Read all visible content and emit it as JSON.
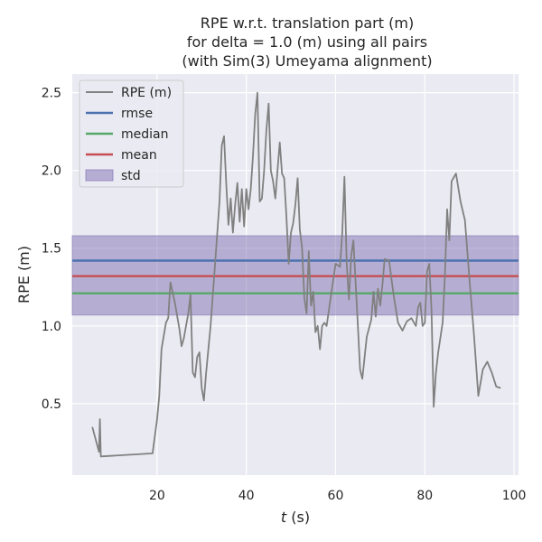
{
  "chart_data": {
    "type": "line",
    "title_lines": [
      "RPE w.r.t. translation part (m)",
      "for delta = 1.0 (m) using all pairs",
      "(with Sim(3) Umeyama alignment)"
    ],
    "xlabel_italic": "t",
    "xlabel_rest": " (s)",
    "ylabel": "RPE (m)",
    "xlim": [
      1,
      101
    ],
    "ylim": [
      0.04,
      2.62
    ],
    "x_ticks": [
      20,
      40,
      60,
      80,
      100
    ],
    "x_tick_labels": [
      "20",
      "40",
      "60",
      "80",
      "100"
    ],
    "y_ticks": [
      0.5,
      1.0,
      1.5,
      2.0,
      2.5
    ],
    "y_tick_labels": [
      "0.5",
      "1.0",
      "1.5",
      "2.0",
      "2.5"
    ],
    "grid": true,
    "legend_position": "top-left",
    "background_color": "#eaeaf2",
    "stats": {
      "rmse": 1.42,
      "median": 1.21,
      "mean": 1.32,
      "std_band": [
        1.07,
        1.58
      ]
    },
    "colors": {
      "rpe": "#808080",
      "rmse": "#4c72b0",
      "median": "#55a868",
      "mean": "#c44e52",
      "std": "#8172b2"
    },
    "legend": [
      {
        "key": "rpe",
        "label": "RPE (m)",
        "kind": "line"
      },
      {
        "key": "rmse",
        "label": "rmse",
        "kind": "line"
      },
      {
        "key": "median",
        "label": "median",
        "kind": "line"
      },
      {
        "key": "mean",
        "label": "mean",
        "kind": "line"
      },
      {
        "key": "std",
        "label": "std",
        "kind": "patch"
      }
    ],
    "series": [
      {
        "key": "rpe",
        "x": [
          5.5,
          7.0,
          7.2,
          7.4,
          19.0,
          20.0,
          20.5,
          21.0,
          22.0,
          22.5,
          23.0,
          24.0,
          25.0,
          25.5,
          26.0,
          27.0,
          27.5,
          28.0,
          28.5,
          29.0,
          29.5,
          30.0,
          30.5,
          31.0,
          32.0,
          33.0,
          34.0,
          34.5,
          35.0,
          35.5,
          36.0,
          36.5,
          37.0,
          37.5,
          38.0,
          38.5,
          39.0,
          39.5,
          40.0,
          40.5,
          41.0,
          41.5,
          42.0,
          42.5,
          43.0,
          43.5,
          44.0,
          44.5,
          45.0,
          45.5,
          46.0,
          46.5,
          47.0,
          47.5,
          48.0,
          48.5,
          49.0,
          49.5,
          50.0,
          50.5,
          51.0,
          51.5,
          52.0,
          52.5,
          53.0,
          53.5,
          54.0,
          54.5,
          55.0,
          55.5,
          56.0,
          56.5,
          57.0,
          57.5,
          58.0,
          59.0,
          60.0,
          61.0,
          61.5,
          62.0,
          62.5,
          63.0,
          63.5,
          64.0,
          65.0,
          65.5,
          66.0,
          67.0,
          68.0,
          68.5,
          69.0,
          69.5,
          70.0,
          70.5,
          71.0,
          72.0,
          73.0,
          74.0,
          75.0,
          75.5,
          76.0,
          77.0,
          78.0,
          78.5,
          79.0,
          79.5,
          80.0,
          80.5,
          81.0,
          81.5,
          82.0,
          82.5,
          83.0,
          84.0,
          84.5,
          85.0,
          85.5,
          86.0,
          87.0,
          88.0,
          89.0,
          90.0,
          91.0,
          92.0,
          93.0,
          94.0,
          95.0,
          96.0,
          97.0
        ],
        "y": [
          0.35,
          0.19,
          0.4,
          0.16,
          0.18,
          0.4,
          0.55,
          0.85,
          1.02,
          1.05,
          1.28,
          1.15,
          0.98,
          0.87,
          0.92,
          1.08,
          1.2,
          0.7,
          0.67,
          0.8,
          0.83,
          0.6,
          0.52,
          0.7,
          1.0,
          1.4,
          1.8,
          2.16,
          2.22,
          1.92,
          1.65,
          1.82,
          1.6,
          1.78,
          1.92,
          1.67,
          1.88,
          1.64,
          1.88,
          1.75,
          1.88,
          2.1,
          2.36,
          2.5,
          1.8,
          1.82,
          2.0,
          2.26,
          2.43,
          2.0,
          1.93,
          1.82,
          2.0,
          2.18,
          1.98,
          1.95,
          1.7,
          1.4,
          1.6,
          1.66,
          1.78,
          1.95,
          1.62,
          1.5,
          1.18,
          1.08,
          1.48,
          1.13,
          1.22,
          0.96,
          1.0,
          0.85,
          1.0,
          1.02,
          1.0,
          1.2,
          1.4,
          1.38,
          1.6,
          1.96,
          1.4,
          1.17,
          1.45,
          1.55,
          1.0,
          0.72,
          0.66,
          0.93,
          1.04,
          1.22,
          1.06,
          1.24,
          1.13,
          1.26,
          1.43,
          1.42,
          1.2,
          1.02,
          0.97,
          1.0,
          1.03,
          1.05,
          1.0,
          1.12,
          1.15,
          1.0,
          1.02,
          1.35,
          1.4,
          1.1,
          0.48,
          0.7,
          0.83,
          1.02,
          1.32,
          1.75,
          1.55,
          1.93,
          1.98,
          1.8,
          1.68,
          1.3,
          0.95,
          0.55,
          0.72,
          0.77,
          0.7,
          0.61,
          0.6
        ]
      }
    ]
  }
}
